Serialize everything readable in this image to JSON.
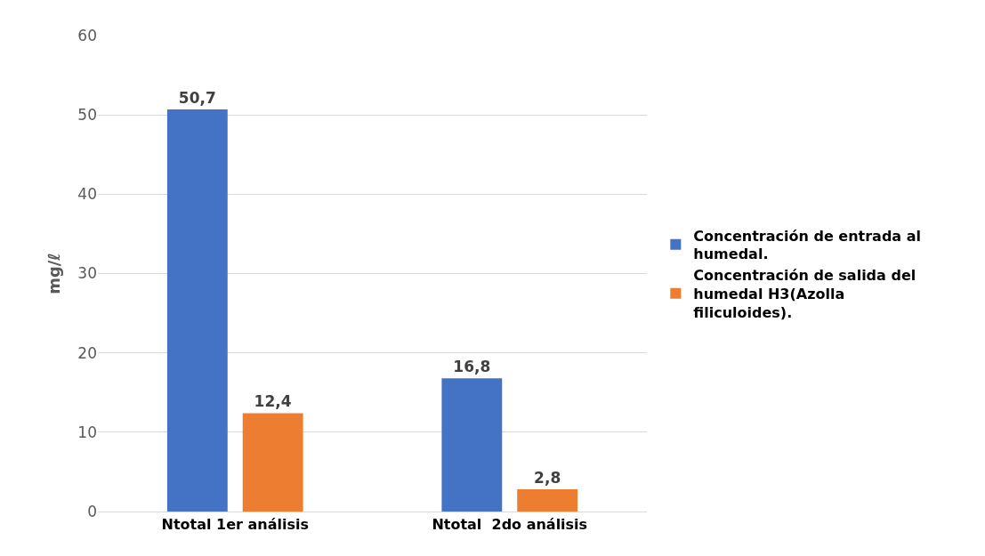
{
  "chart_data": {
    "type": "bar",
    "ylabel": "mg/ℓ",
    "categories": [
      "Ntotal 1er análisis",
      "Ntotal  2do análisis"
    ],
    "series": [
      {
        "name": "Concentración de entrada al humedal.",
        "color": "#4472c4",
        "values": [
          50.7,
          16.8
        ],
        "value_labels": [
          "50,7",
          "16,8"
        ]
      },
      {
        "name": "Concentración de salida del humedal H3(Azolla filiculoides).",
        "color": "#ed7d31",
        "values": [
          12.4,
          2.8
        ],
        "value_labels": [
          "12,4",
          "2,8"
        ]
      }
    ],
    "ylim": [
      0,
      60
    ],
    "yticks": [
      0,
      10,
      20,
      30,
      40,
      50,
      60
    ],
    "grid": "y",
    "legend": "right"
  }
}
